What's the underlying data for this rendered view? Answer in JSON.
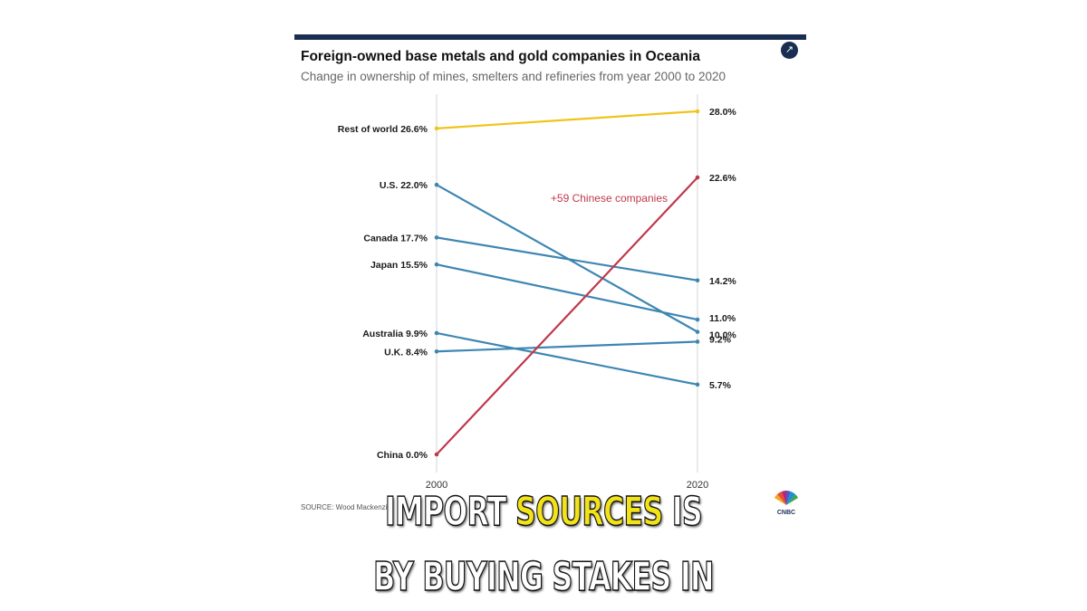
{
  "header": {
    "title": "Foreign-owned base metals and gold companies in Oceania",
    "subtitle": "Change in ownership of mines, smelters and refineries from year 2000 to 2020",
    "expand_icon": "expand-arrow-icon"
  },
  "source": "SOURCE: Wood Mackenzi",
  "brand": {
    "name": "CNBC",
    "logo_icon": "cnbc-peacock-icon"
  },
  "colors": {
    "rest_of_world": "#f0c419",
    "china": "#c0394b",
    "others": "#3e86b2",
    "top_rule": "#1a2e52"
  },
  "chart_data": {
    "type": "line",
    "x": [
      2000,
      2020
    ],
    "x_tick_labels": [
      "2000",
      "2020"
    ],
    "ylim": [
      0,
      30
    ],
    "grid": "vertical lines at 2000 and 2020",
    "annotations": [
      {
        "text": "+59 Chinese companies",
        "series": "China"
      }
    ],
    "series": [
      {
        "name": "Rest of world",
        "start_label": "Rest of world 26.6%",
        "end_label": "28.0%",
        "values": [
          26.6,
          28.0
        ],
        "color": "#f0c419"
      },
      {
        "name": "U.S.",
        "start_label": "U.S. 22.0%",
        "end_label": "10.0%",
        "values": [
          22.0,
          10.0
        ],
        "color": "#3e86b2"
      },
      {
        "name": "Canada",
        "start_label": "Canada 17.7%",
        "end_label": "14.2%",
        "values": [
          17.7,
          14.2
        ],
        "color": "#3e86b2"
      },
      {
        "name": "Japan",
        "start_label": "Japan 15.5%",
        "end_label": "11.0%",
        "values": [
          15.5,
          11.0
        ],
        "color": "#3e86b2"
      },
      {
        "name": "Australia",
        "start_label": "Australia 9.9%",
        "end_label": "5.7%",
        "values": [
          9.9,
          5.7
        ],
        "color": "#3e86b2"
      },
      {
        "name": "U.K.",
        "start_label": "U.K. 8.4%",
        "end_label": "9.2%",
        "values": [
          8.4,
          9.2
        ],
        "color": "#3e86b2"
      },
      {
        "name": "China",
        "start_label": "China 0.0%",
        "end_label": "22.6%",
        "values": [
          0.0,
          22.6
        ],
        "color": "#c0394b"
      }
    ]
  },
  "captions": {
    "line1_pre": "IMPORT ",
    "line1_highlight": "SOURCES",
    "line1_post": " IS",
    "line2": "BY BUYING STAKES IN"
  }
}
